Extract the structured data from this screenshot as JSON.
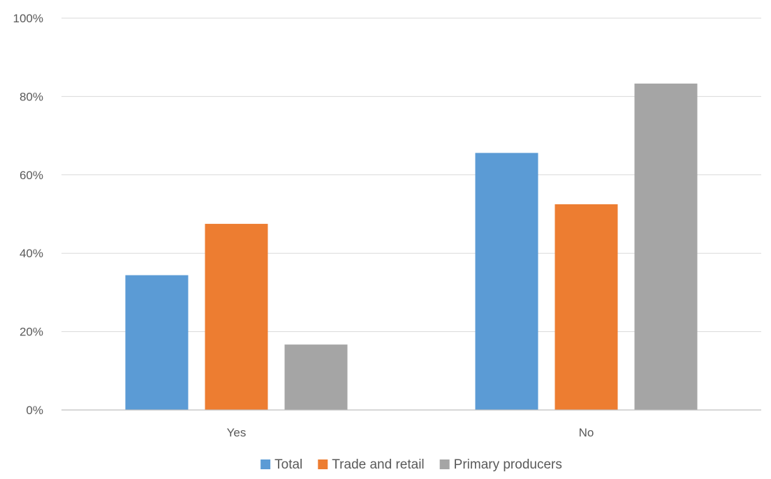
{
  "chart_data": {
    "type": "bar",
    "title": "",
    "xlabel": "",
    "ylabel": "",
    "categories": [
      "Yes",
      "No"
    ],
    "ylim": [
      0,
      100
    ],
    "ytick_step": 20,
    "y_format": "percent",
    "grid": true,
    "legend_position": "bottom",
    "series": [
      {
        "name": "Total",
        "color": "#5B9BD5",
        "values": [
          34.4,
          65.6
        ]
      },
      {
        "name": "Trade and retail",
        "color": "#ED7D31",
        "values": [
          47.5,
          52.5
        ]
      },
      {
        "name": "Primary producers",
        "color": "#A5A5A5",
        "values": [
          16.7,
          83.3
        ]
      }
    ]
  }
}
